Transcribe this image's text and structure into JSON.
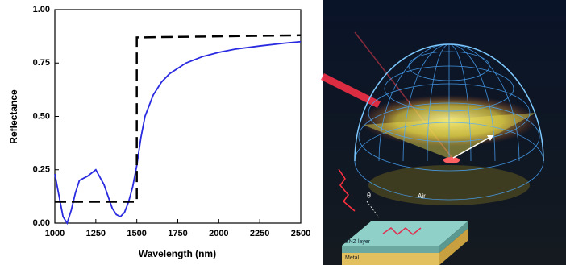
{
  "chart_data": {
    "type": "line",
    "xlabel": "Wavelength (nm)",
    "ylabel": "Reflectance",
    "xlim": [
      1000,
      2500
    ],
    "xticks": [
      1000,
      1250,
      1500,
      1750,
      2000,
      2250,
      2500
    ],
    "ylim": [
      0,
      1
    ],
    "yticks": [
      {
        "value": 0,
        "label": "0.00"
      },
      {
        "value": 0.25,
        "label": "0.25"
      },
      {
        "value": 0.5,
        "label": "0.50"
      },
      {
        "value": 0.75,
        "label": "0.75"
      },
      {
        "value": 1,
        "label": "1.00"
      }
    ],
    "series": [
      {
        "color": "#2a2ae0",
        "dash": false,
        "x": [
          1000,
          1025,
          1050,
          1075,
          1100,
          1125,
          1150,
          1200,
          1250,
          1300,
          1350,
          1375,
          1400,
          1425,
          1450,
          1475,
          1500,
          1525,
          1550,
          1600,
          1650,
          1700,
          1800,
          1900,
          2000,
          2100,
          2250,
          2400,
          2500
        ],
        "values": [
          0.23,
          0.13,
          0.03,
          0.0,
          0.06,
          0.14,
          0.2,
          0.22,
          0.25,
          0.18,
          0.07,
          0.04,
          0.03,
          0.05,
          0.1,
          0.17,
          0.27,
          0.4,
          0.5,
          0.6,
          0.66,
          0.7,
          0.75,
          0.78,
          0.8,
          0.815,
          0.83,
          0.843,
          0.85
        ]
      },
      {
        "color": "#000000",
        "dash": true,
        "x": [
          1000,
          1500,
          1500,
          2500
        ],
        "values": [
          0.1,
          0.1,
          0.87,
          0.88
        ]
      }
    ]
  },
  "illustration": {
    "labels": {
      "air": "Air",
      "angle": "θ",
      "enz": "ENZ layer",
      "metal": "Metal"
    }
  }
}
